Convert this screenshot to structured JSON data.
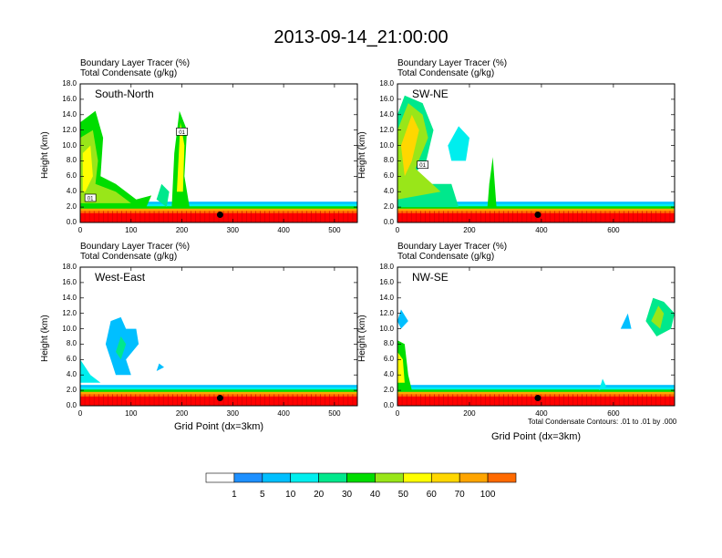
{
  "chart_data": {
    "type": "heatmap",
    "title": "2013-09-14_21:00:00",
    "subtitle_line1": "Boundary Layer Tracer   (%)",
    "subtitle_line2": "Total Condensate   (g/kg)",
    "ylabel": "Height (km)",
    "xlabel": "Grid Point (dx=3km)",
    "contour_note": "Total Condensate Contours: .01 to .01 by .000",
    "ytick_labels": [
      "0.0",
      "2.0",
      "4.0",
      "6.0",
      "8.0",
      "10.0",
      "12.0",
      "14.0",
      "16.0",
      "18.0"
    ],
    "ylim": [
      0,
      18
    ],
    "panels": [
      {
        "label": "South-North",
        "xlim": [
          0,
          545
        ],
        "xticks": [
          "0",
          "100",
          "200",
          "300",
          "400",
          "500"
        ],
        "xtick_values": [
          0,
          100,
          200,
          300,
          400,
          500
        ],
        "contour_boxes": [
          {
            "text": "01",
            "x": 200,
            "y": 11.8
          },
          {
            "text": "01",
            "x": 20,
            "y": 3.2
          }
        ],
        "marker_x": 275,
        "marker_y": 1.0
      },
      {
        "label": "SW-NE",
        "xlim": [
          0,
          770
        ],
        "xticks": [
          "0",
          "200",
          "400",
          "600"
        ],
        "xtick_values": [
          0,
          200,
          400,
          600
        ],
        "contour_boxes": [
          {
            "text": "01",
            "x": 70,
            "y": 7.5
          }
        ],
        "marker_x": 390,
        "marker_y": 1.0
      },
      {
        "label": "West-East",
        "xlim": [
          0,
          545
        ],
        "xticks": [
          "0",
          "100",
          "200",
          "300",
          "400",
          "500"
        ],
        "xtick_values": [
          0,
          100,
          200,
          300,
          400,
          500
        ],
        "contour_boxes": [],
        "marker_x": 275,
        "marker_y": 1.0
      },
      {
        "label": "NW-SE",
        "xlim": [
          0,
          770
        ],
        "xticks": [
          "0",
          "200",
          "400",
          "600"
        ],
        "xtick_values": [
          0,
          200,
          400,
          600
        ],
        "contour_boxes": [],
        "marker_x": 390,
        "marker_y": 1.0
      }
    ],
    "colorbar": {
      "labels": [
        "1",
        "5",
        "10",
        "20",
        "30",
        "40",
        "50",
        "60",
        "70",
        "100"
      ],
      "colors": [
        "#ffffff",
        "#1e90ff",
        "#00bfff",
        "#00eeee",
        "#00e88c",
        "#00dd00",
        "#99e619",
        "#ffff00",
        "#ffd700",
        "#ffa500",
        "#ff6a00",
        "#ff0000"
      ]
    }
  }
}
